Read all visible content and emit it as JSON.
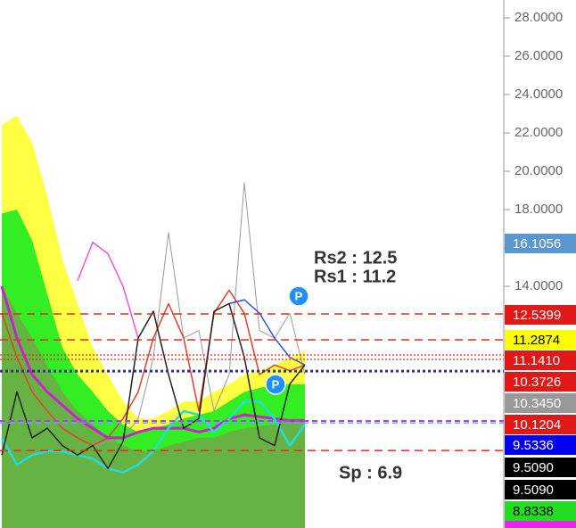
{
  "chart_data": {
    "type": "line",
    "ylim": [
      1.4,
      28.93
    ],
    "yticks": [
      {
        "value": 14,
        "label": "14.0000"
      },
      {
        "value": 16,
        "label": "16.0000"
      },
      {
        "value": 18,
        "label": "18.0000"
      },
      {
        "value": 20,
        "label": "20.0000"
      },
      {
        "value": 22,
        "label": "22.0000"
      },
      {
        "value": 24,
        "label": "24.0000"
      },
      {
        "value": 26,
        "label": "26.0000"
      },
      {
        "value": 28,
        "label": "28.0000"
      }
    ],
    "areas": [
      {
        "color": "#ffff44",
        "values": [
          22.4,
          22.9,
          21.5,
          18.7,
          15.4,
          13.1,
          10.8,
          9.4,
          8.0,
          7.1,
          7.1,
          7.5,
          8.0,
          8.0,
          8.5,
          8.9,
          9.4,
          9.6,
          9.9,
          10.3,
          10.6
        ]
      },
      {
        "color": "#33ee22",
        "values": [
          17.8,
          18.0,
          16.4,
          13.6,
          10.8,
          9.4,
          8.5,
          7.5,
          6.8,
          6.4,
          6.6,
          6.8,
          7.1,
          7.3,
          7.5,
          8.0,
          8.5,
          8.7,
          8.9,
          8.9,
          8.9
        ]
      },
      {
        "color": "#66b344",
        "values": [
          14.0,
          12.6,
          11.3,
          9.9,
          8.5,
          7.5,
          6.8,
          6.1,
          5.7,
          5.4,
          5.4,
          5.7,
          5.9,
          6.1,
          6.1,
          6.4,
          6.6,
          6.7,
          6.8,
          7.1,
          7.1
        ]
      }
    ],
    "series": [
      {
        "color": "#999999",
        "width": 1,
        "values": [
          null,
          null,
          null,
          null,
          null,
          null,
          5.7,
          5.9,
          6.1,
          7.1,
          10.3,
          16.8,
          11.3,
          11.7,
          7.5,
          9.4,
          19.4,
          11.7,
          11.3,
          12.6,
          9.4
        ]
      },
      {
        "color": "#e04030",
        "width": 1.5,
        "values": [
          12.6,
          10.3,
          8.5,
          7.5,
          6.6,
          6.1,
          5.7,
          6.1,
          7.1,
          8.5,
          11.3,
          13.1,
          11.3,
          7.5,
          12.6,
          13.8,
          12.6,
          9.4,
          9.9,
          9.6,
          9.9
        ]
      },
      {
        "color": "#3355dd",
        "width": 1.5,
        "values": [
          null,
          null,
          null,
          null,
          null,
          null,
          null,
          null,
          null,
          null,
          null,
          null,
          null,
          null,
          null,
          13.1,
          13.3,
          12.6,
          11.3,
          10.3,
          9.9
        ]
      },
      {
        "color": "#ee55dd",
        "width": 1.5,
        "values": [
          null,
          null,
          null,
          null,
          null,
          14.3,
          16.3,
          15.7,
          14.0,
          11.3,
          null,
          null,
          null,
          null,
          null,
          null,
          null,
          null,
          null,
          null,
          null
        ]
      },
      {
        "color": "#cc22cc",
        "width": 3,
        "values": [
          14.0,
          11.3,
          9.4,
          8.5,
          7.8,
          7.1,
          6.6,
          6.1,
          6.1,
          6.4,
          6.6,
          6.6,
          6.6,
          6.4,
          6.6,
          7.1,
          7.3,
          7.2,
          7.1,
          7.0,
          7.0
        ]
      },
      {
        "color": "#22dddd",
        "width": 2.5,
        "values": [
          6.1,
          4.7,
          5.2,
          5.4,
          5.4,
          5.2,
          5.0,
          4.5,
          4.3,
          4.7,
          5.4,
          6.6,
          7.5,
          7.3,
          6.4,
          7.1,
          8.0,
          8.0,
          7.1,
          5.7,
          6.8
        ]
      },
      {
        "color": "#222222",
        "width": 1.5,
        "values": [
          5.2,
          8.5,
          6.1,
          6.6,
          5.7,
          5.2,
          5.7,
          4.5,
          5.9,
          11.3,
          12.7,
          9.4,
          6.6,
          7.1,
          12.7,
          13.1,
          10.3,
          6.1,
          5.7,
          8.9,
          9.9
        ]
      }
    ],
    "levels": [
      {
        "value": 12.56,
        "color": "#e03020",
        "dash": "9,6",
        "width": 1.5
      },
      {
        "value": 11.21,
        "color": "#e03020",
        "dash": "9,6",
        "width": 1.5
      },
      {
        "value": 10.42,
        "color": "#e03020",
        "dash": "2,2",
        "width": 1.2
      },
      {
        "value": 10.19,
        "color": "#e03020",
        "dash": "2,2",
        "width": 1.2
      },
      {
        "value": 9.58,
        "color": "#333388",
        "dash": "3,3",
        "width": 3
      },
      {
        "value": 6.98,
        "color": "#aa44ee",
        "dash": "6,4",
        "width": 2
      },
      {
        "value": 6.88,
        "color": "#66aaee",
        "dash": "6,4",
        "width": 1.5
      },
      {
        "value": 5.44,
        "color": "#e03020",
        "dash": "9,6",
        "width": 1.5
      }
    ],
    "annotations": [
      "Rs2 : 12.5",
      "Rs1 : 11.2",
      "Sp : 6.9",
      "P",
      "P"
    ],
    "price_tags": [
      {
        "text": "16.1056",
        "bg": "#5b96cc",
        "fg": "#ffffff"
      },
      {
        "text": "12.5399",
        "bg": "#e01818",
        "fg": "#ffffff"
      },
      {
        "text": "11.2874",
        "bg": "#ffff00",
        "fg": "#000000"
      },
      {
        "text": "11.1410",
        "bg": "#e01818",
        "fg": "#ffffff"
      },
      {
        "text": "10.3726",
        "bg": "#e01818",
        "fg": "#ffffff"
      },
      {
        "text": "10.3450",
        "bg": "#999999",
        "fg": "#ffffff"
      },
      {
        "text": "10.1204",
        "bg": "#e01818",
        "fg": "#ffffff"
      },
      {
        "text": "9.5336",
        "bg": "#0000ee",
        "fg": "#ffffff"
      },
      {
        "text": "9.5090",
        "bg": "#000000",
        "fg": "#ffffff"
      },
      {
        "text": "9.5090",
        "bg": "#000000",
        "fg": "#ffffff"
      },
      {
        "text": "8.8338",
        "bg": "#22dd22",
        "fg": "#000000"
      }
    ]
  }
}
